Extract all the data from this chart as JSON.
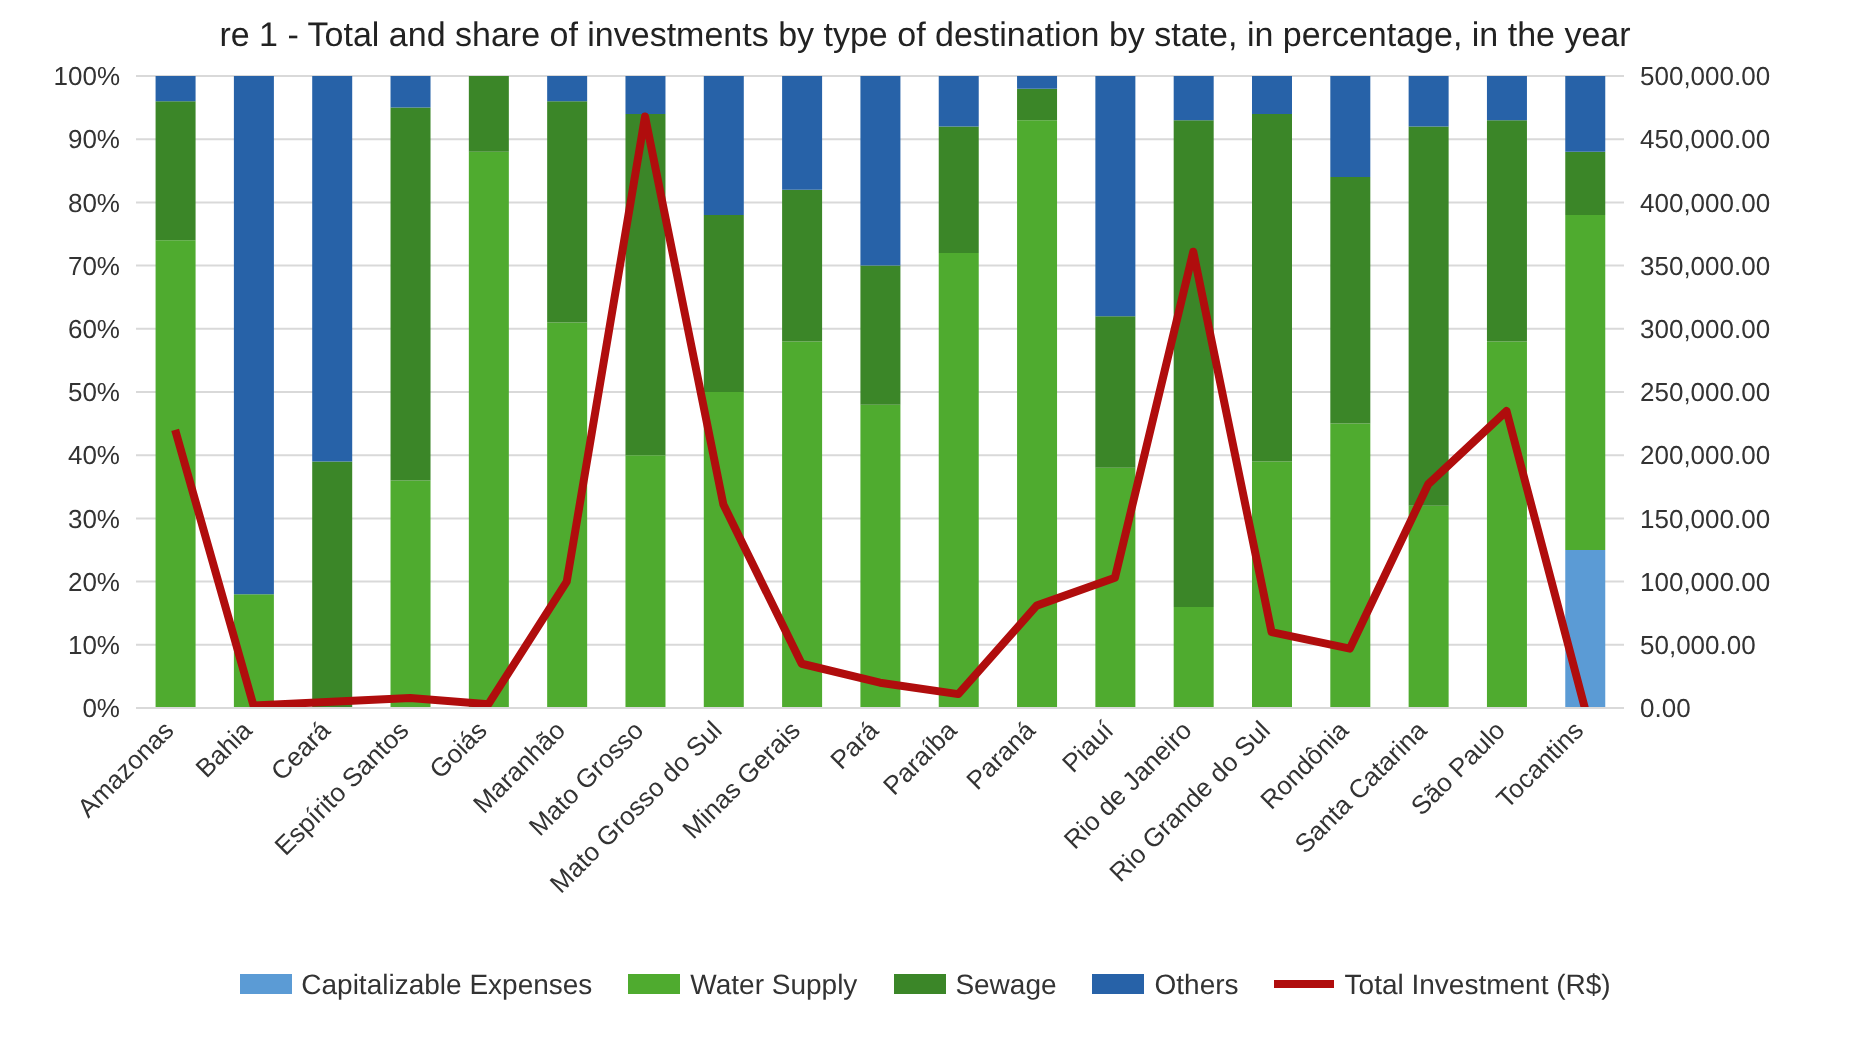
{
  "chart_data": {
    "type": "bar",
    "title": "re 1 - Total and share of investments by type of destination by state, in percentage, in the year",
    "stacked": true,
    "grid": "y",
    "legend": "bottom",
    "categories": [
      "Amazonas",
      "Bahia",
      "Ceará",
      "Espírito Santos",
      "Goiás",
      "Maranhão",
      "Mato Grosso",
      "Mato Grosso do Sul",
      "Minas Gerais",
      "Pará",
      "Paraíba",
      "Paraná",
      "Piauí",
      "Rio de Janeiro",
      "Rio Grande do Sul",
      "Rondônia",
      "Santa Catarina",
      "São Paulo",
      "Tocantins"
    ],
    "series": [
      {
        "name": "Capitalizable Expenses",
        "color": "#5b9bd5",
        "values": [
          0,
          0,
          0,
          0,
          0,
          0,
          0,
          0,
          0,
          0,
          0,
          0,
          0,
          0,
          0,
          0,
          0,
          0,
          25
        ]
      },
      {
        "name": "Water Supply",
        "color": "#4fab2f",
        "values": [
          74,
          18,
          0,
          36,
          88,
          61,
          40,
          50,
          58,
          48,
          72,
          93,
          38,
          16,
          39,
          45,
          32,
          58,
          53
        ]
      },
      {
        "name": "Sewage",
        "color": "#3b8628",
        "values": [
          22,
          0,
          39,
          59,
          12,
          35,
          54,
          28,
          24,
          22,
          20,
          5,
          24,
          77,
          55,
          39,
          60,
          35,
          10
        ]
      },
      {
        "name": "Others",
        "color": "#2762a8",
        "values": [
          4,
          82,
          61,
          5,
          0,
          4,
          6,
          22,
          18,
          30,
          8,
          2,
          38,
          7,
          6,
          16,
          8,
          7,
          12
        ]
      },
      {
        "name": "Total Investment (R$)",
        "type": "line",
        "axis": "y2",
        "color": "#b00d0d",
        "values": [
          220000,
          2000,
          5000,
          8000,
          3000,
          100000,
          468000,
          161000,
          35000,
          20000,
          11000,
          81000,
          103000,
          361000,
          60000,
          47000,
          177000,
          235000,
          0
        ]
      }
    ],
    "ylim": [
      0,
      100
    ],
    "yticks": [
      {
        "value": 0,
        "label": "0%"
      },
      {
        "value": 10,
        "label": "10%"
      },
      {
        "value": 20,
        "label": "20%"
      },
      {
        "value": 30,
        "label": "30%"
      },
      {
        "value": 40,
        "label": "40%"
      },
      {
        "value": 50,
        "label": "50%"
      },
      {
        "value": 60,
        "label": "60%"
      },
      {
        "value": 70,
        "label": "70%"
      },
      {
        "value": 80,
        "label": "80%"
      },
      {
        "value": 90,
        "label": "90%"
      },
      {
        "value": 100,
        "label": "100%"
      }
    ],
    "y2lim": [
      0,
      500000
    ],
    "y2ticks": [
      {
        "value": 0,
        "label": "0.00"
      },
      {
        "value": 50000,
        "label": "50,000.00"
      },
      {
        "value": 100000,
        "label": "100,000.00"
      },
      {
        "value": 150000,
        "label": "150,000.00"
      },
      {
        "value": 200000,
        "label": "200,000.00"
      },
      {
        "value": 250000,
        "label": "250,000.00"
      },
      {
        "value": 300000,
        "label": "300,000.00"
      },
      {
        "value": 350000,
        "label": "350,000.00"
      },
      {
        "value": 400000,
        "label": "400,000.00"
      },
      {
        "value": 450000,
        "label": "450,000.00"
      },
      {
        "value": 500000,
        "label": "500,000.00"
      }
    ]
  }
}
